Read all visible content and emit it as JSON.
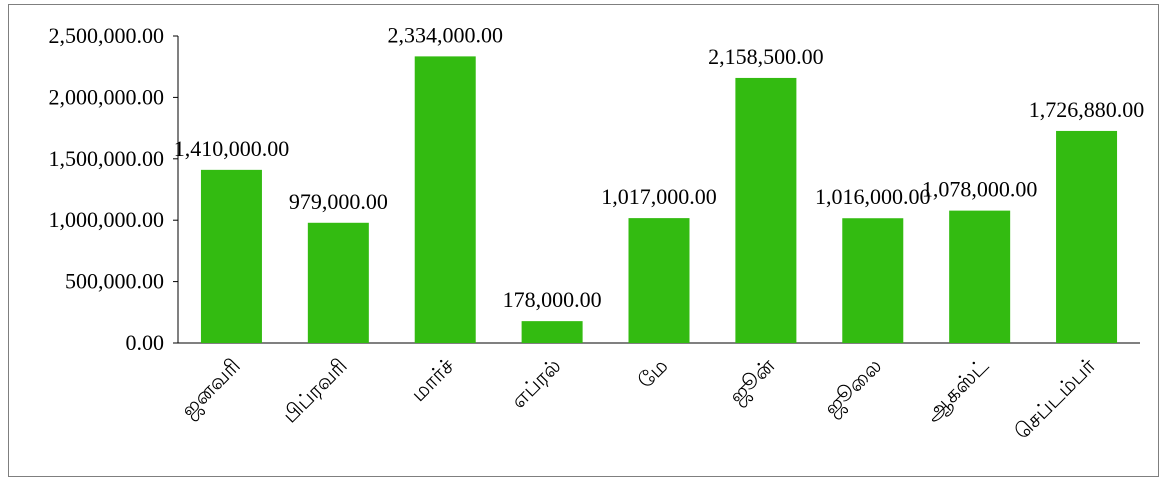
{
  "chart_data": {
    "type": "bar",
    "title": "",
    "xlabel": "",
    "ylabel": "",
    "categories": [
      "ஜனவரி",
      "பிப்ரவரி",
      "மார்ச்",
      "எப்ரல்",
      "மே",
      "ஜூன்",
      "ஜூலை",
      "ஆகஸ்ட்",
      "செப்டம்பர்"
    ],
    "values": [
      1410000,
      979000,
      2334000,
      178000,
      1017000,
      2158500,
      1016000,
      1078000,
      1726880
    ],
    "value_labels": [
      "1,410,000.00",
      "979,000.00",
      "2,334,000.00",
      "178,000.00",
      "1,017,000.00",
      "2,158,500.00",
      "1,016,000.00",
      "1,078,000.00",
      "1,726,880.00"
    ],
    "yticks": [
      0,
      500000,
      1000000,
      1500000,
      2000000,
      2500000
    ],
    "ytick_labels": [
      "0.00",
      "500,000.00",
      "1,000,000.00",
      "1,500,000.00",
      "2,000,000.00",
      "2,500,000.00"
    ],
    "ylim": [
      0,
      2500000
    ],
    "grid": false,
    "legend": "none",
    "bar_color": "#33bb11"
  }
}
